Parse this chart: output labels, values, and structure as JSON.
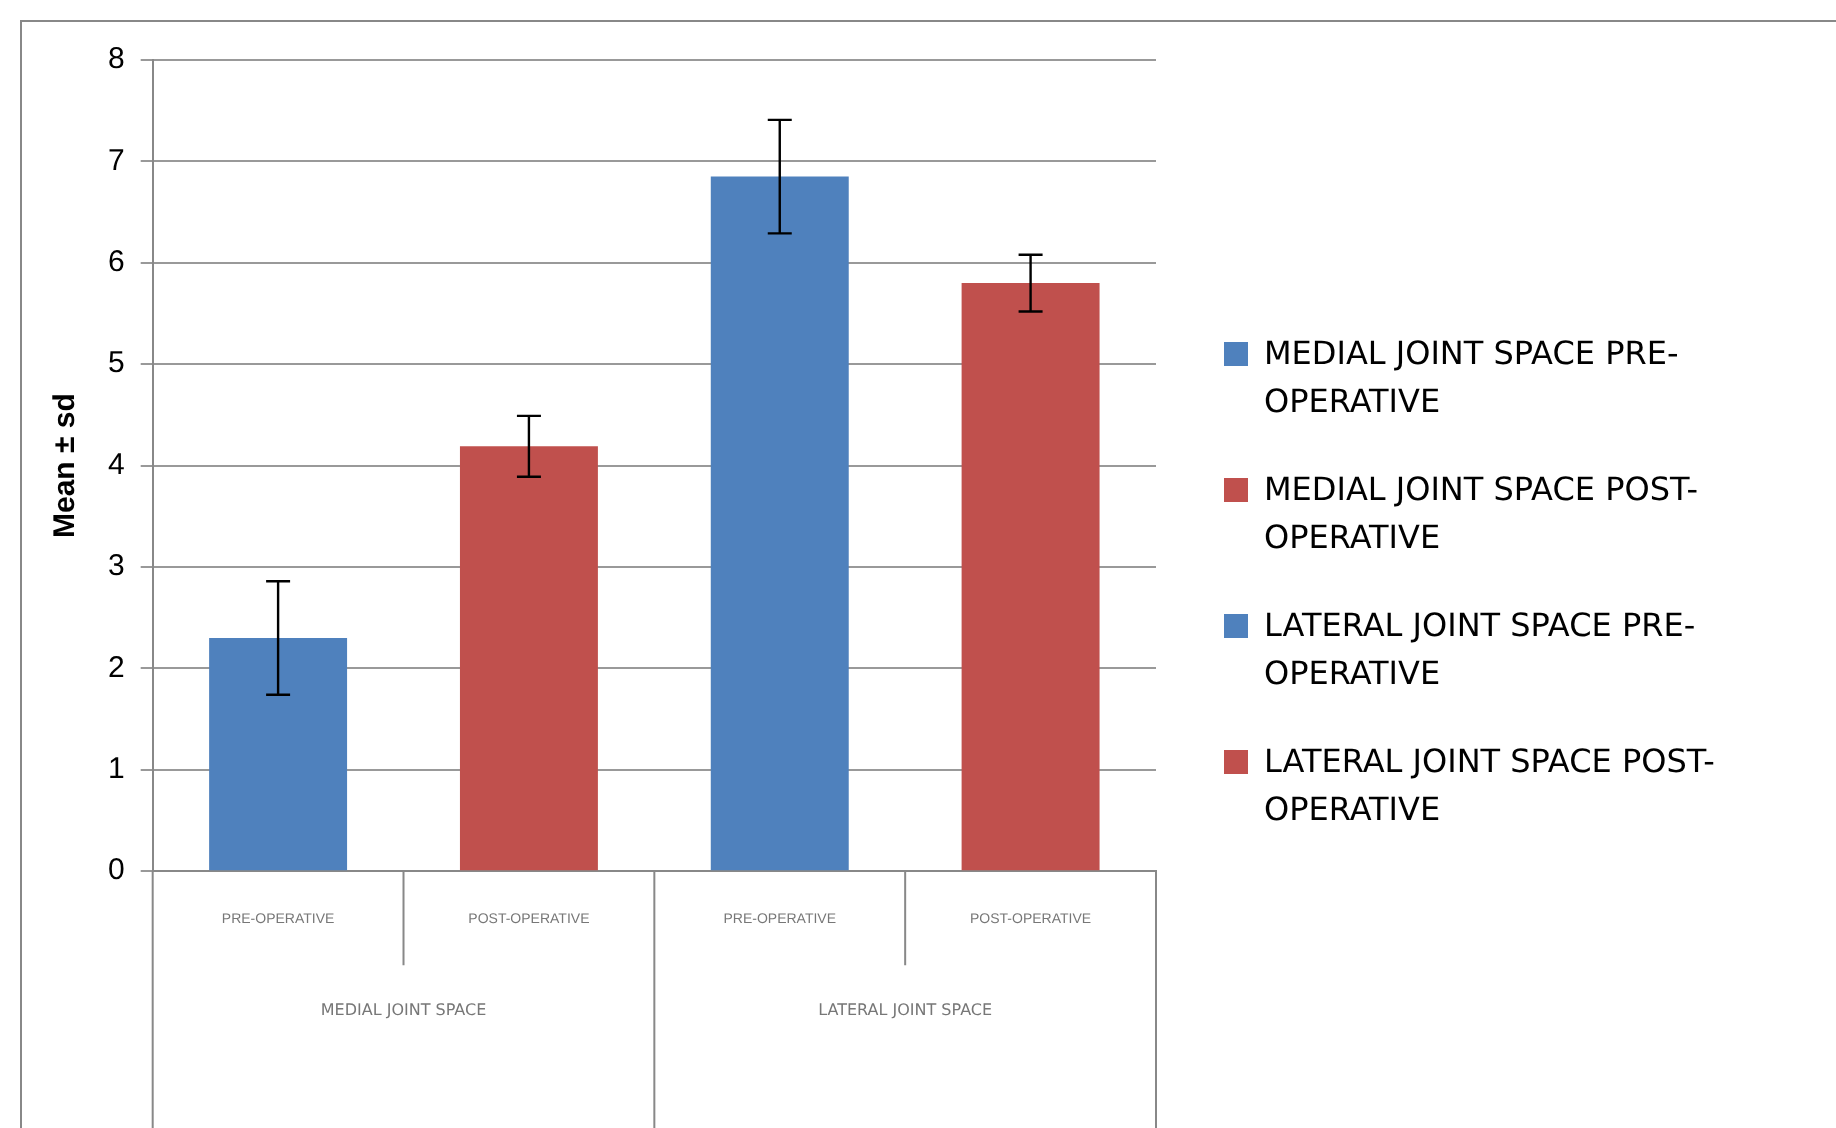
{
  "chart_data": {
    "type": "bar",
    "ylabel": "Mean ± sd",
    "categories": [
      "PRE-OPERATIVE",
      "POST-OPERATIVE",
      "PRE-OPERATIVE",
      "POST-OPERATIVE"
    ],
    "series": [
      {
        "name": "MEDIAL JOINT SPACE PRE-OPERATIVE",
        "color": "#4f81bd",
        "values": [
          2.3,
          null,
          null,
          null
        ],
        "errors": [
          0.56,
          null,
          null,
          null
        ]
      },
      {
        "name": "MEDIAL JOINT SPACE POST-OPERATIVE",
        "color": "#c0504d",
        "values": [
          null,
          4.19,
          null,
          null
        ],
        "errors": [
          null,
          0.3,
          null,
          null
        ]
      },
      {
        "name": "LATERAL JOINT SPACE PRE-OPERATIVE",
        "color": "#4f81bd",
        "values": [
          null,
          null,
          6.85,
          null
        ],
        "errors": [
          null,
          null,
          0.56,
          null
        ]
      },
      {
        "name": "LATERAL JOINT SPACE POST-OPERATIVE",
        "color": "#c0504d",
        "values": [
          null,
          null,
          null,
          5.8
        ],
        "errors": [
          null,
          null,
          null,
          0.28
        ]
      }
    ],
    "annotations": [
      "MEDIAL JOINT SPACE",
      "LATERAL JOINT SPACE"
    ],
    "ylim": [
      0,
      8
    ],
    "yticks": [
      0,
      1,
      2,
      3,
      4,
      5,
      6,
      7,
      8
    ],
    "grid": "y",
    "legend": "right"
  }
}
